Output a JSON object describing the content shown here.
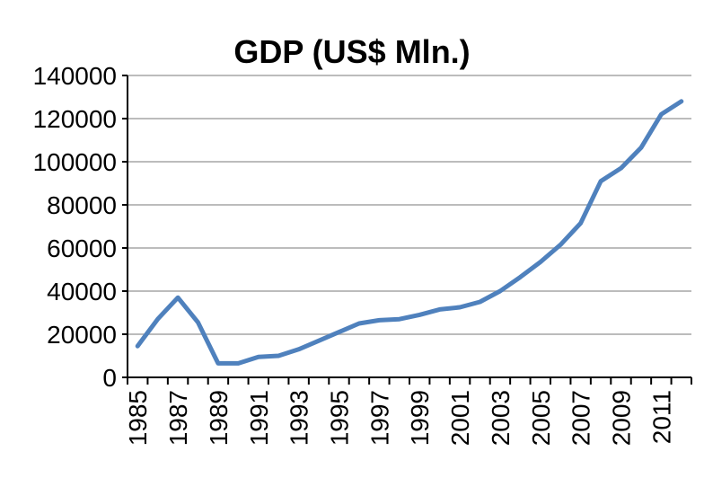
{
  "chart_data": {
    "type": "line",
    "title": "GDP (US$ Mln.)",
    "xlabel": "",
    "ylabel": "",
    "ylim": [
      0,
      140000
    ],
    "yticks": [
      0,
      20000,
      40000,
      60000,
      80000,
      100000,
      120000,
      140000
    ],
    "xtick_labels": [
      "1985",
      "1987",
      "1989",
      "1991",
      "1993",
      "1995",
      "1997",
      "1999",
      "2001",
      "2003",
      "2005",
      "2007",
      "2009",
      "2011"
    ],
    "grid": true,
    "legend": "none",
    "x": [
      1985,
      1986,
      1987,
      1988,
      1989,
      1990,
      1991,
      1992,
      1993,
      1994,
      1995,
      1996,
      1997,
      1998,
      1999,
      2000,
      2001,
      2002,
      2003,
      2004,
      2005,
      2006,
      2007,
      2008,
      2009,
      2010,
      2011,
      2012
    ],
    "series": [
      {
        "color": "#4f81bd",
        "values": [
          14500,
          27000,
          37000,
          25500,
          6500,
          6500,
          9500,
          10000,
          13000,
          17000,
          21000,
          25000,
          26500,
          27000,
          29000,
          31500,
          32500,
          35000,
          40000,
          46500,
          53500,
          61500,
          71500,
          91000,
          97000,
          106500,
          122000,
          128000
        ]
      }
    ]
  }
}
